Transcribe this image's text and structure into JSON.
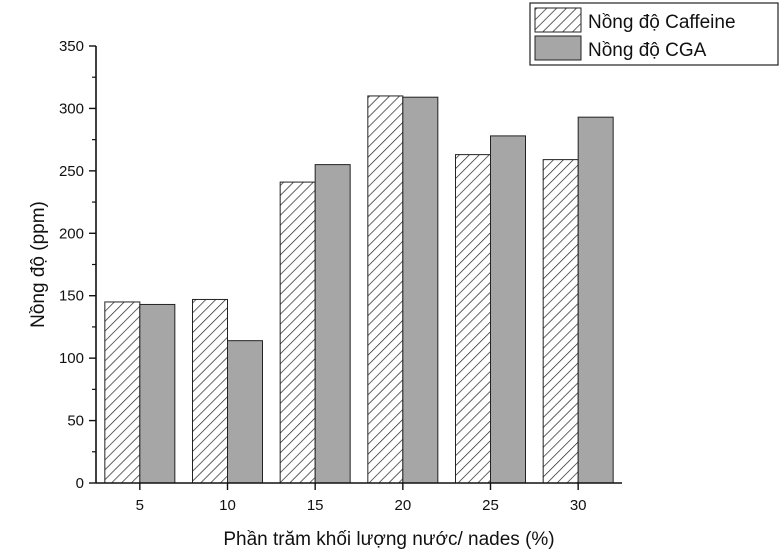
{
  "chart_data": {
    "type": "bar",
    "title": "",
    "xlabel": "Phần trăm khối lượng nước/ nades (%)",
    "ylabel": "Nồng độ (ppm)",
    "categories": [
      "5",
      "10",
      "15",
      "20",
      "25",
      "30"
    ],
    "series": [
      {
        "name": "Nồng độ Caffeine",
        "values": [
          145,
          147,
          241,
          310,
          263,
          259
        ],
        "fill": "hatched"
      },
      {
        "name": "Nồng độ CGA",
        "values": [
          143,
          114,
          255,
          309,
          278,
          293
        ],
        "color": "#a6a6a6"
      }
    ],
    "ylim": [
      0,
      350
    ],
    "yticks": [
      "0",
      "50",
      "100",
      "150",
      "200",
      "250",
      "300",
      "350"
    ],
    "grid": false,
    "legend_position": "top-right"
  }
}
